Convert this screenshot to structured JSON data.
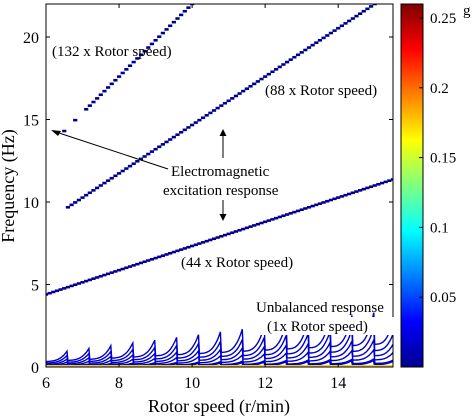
{
  "chart_data": {
    "type": "heatmap",
    "title": "",
    "xlabel": "Rotor speed (r/min)",
    "ylabel": "Frequency (Hz)",
    "xlim": [
      6,
      15.5
    ],
    "ylim": [
      0,
      22
    ],
    "xticks": [
      6,
      8,
      10,
      12,
      14
    ],
    "yticks": [
      0,
      5,
      10,
      15,
      20
    ],
    "grid": false,
    "colormap": "jet",
    "colorbar": {
      "unit": "g",
      "range": [
        0,
        0.26
      ],
      "ticks": [
        0.05,
        0.1,
        0.15,
        0.2,
        0.25
      ]
    },
    "series": [
      {
        "label": "44 x Rotor speed",
        "multiplier": 44,
        "x_range": [
          6,
          15.5
        ],
        "color": "#00008f"
      },
      {
        "label": "88 x Rotor speed",
        "multiplier": 88,
        "x_range": [
          6.6,
          15.5
        ],
        "color": "#00008f"
      },
      {
        "label": "132 x Rotor speed",
        "multiplier": 132,
        "x_range": [
          6.5,
          15.5
        ],
        "color": "#00008f"
      },
      {
        "label": "Unbalanced response (1x Rotor speed)",
        "multiplier": 1,
        "x_range": [
          6,
          15.5
        ],
        "color": "#0000cc"
      }
    ],
    "annotations": {
      "em_line1": "Electromagnetic",
      "em_line2": "excitation response",
      "label_132": "(132 x Rotor speed)",
      "label_88": "(88 x Rotor speed)",
      "label_44": "(44 x Rotor speed)",
      "unbalanced_line1": "Unbalanced response",
      "unbalanced_line2": "(1x Rotor speed)"
    }
  }
}
